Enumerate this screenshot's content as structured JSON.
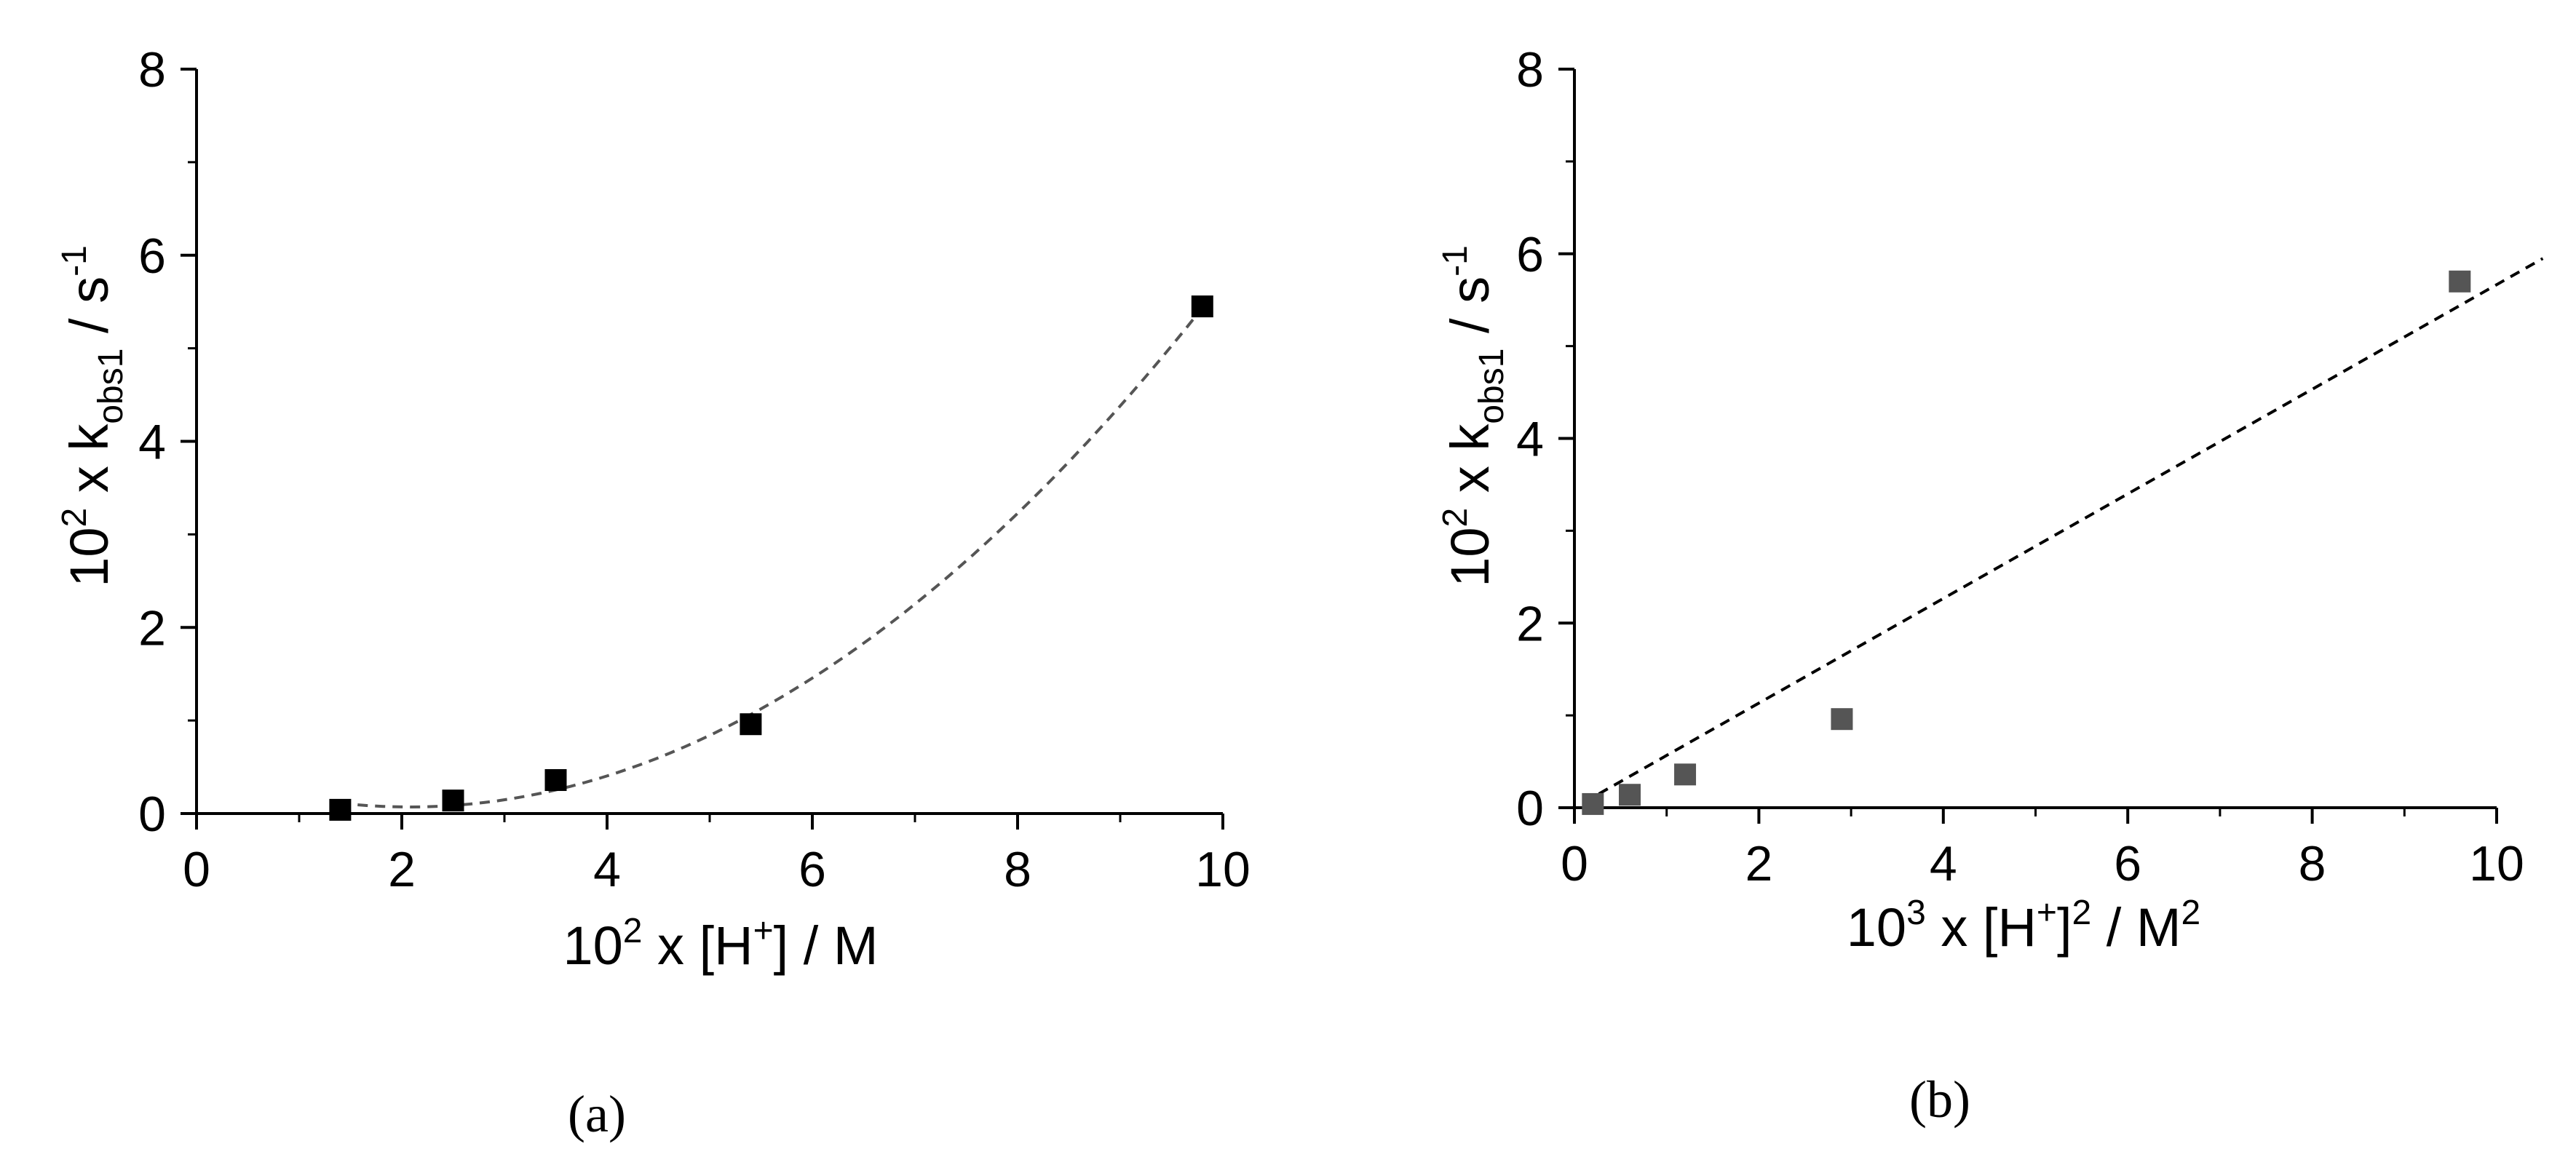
{
  "chart_data": [
    {
      "type": "scatter",
      "panel_label": "(a)",
      "xlabel": {
        "base": "10",
        "exp": "2",
        "mid": " x [H",
        "mid_sup": "+",
        "tail": "] / M"
      },
      "ylabel": {
        "base": "10",
        "exp": "2",
        "mid": " x k",
        "sub": "obs1",
        "tail": " / s",
        "tail_sup": "-1"
      },
      "xlim": [
        0,
        10
      ],
      "ylim": [
        0,
        8
      ],
      "xticks": [
        "0",
        "2",
        "4",
        "6",
        "8",
        "10"
      ],
      "yticks": [
        "0",
        "2",
        "4",
        "6",
        "8"
      ],
      "xtick_values": [
        0,
        2,
        4,
        6,
        8,
        10
      ],
      "ytick_values": [
        0,
        2,
        4,
        6,
        8
      ],
      "marker_color": "#000000",
      "fit_color": "#555555",
      "fit": "quadratic",
      "fit_range": [
        1.4,
        9.8
      ],
      "points": [
        {
          "x": 1.4,
          "y": 0.04
        },
        {
          "x": 2.5,
          "y": 0.14
        },
        {
          "x": 3.5,
          "y": 0.36
        },
        {
          "x": 5.4,
          "y": 0.96
        },
        {
          "x": 9.8,
          "y": 5.45
        }
      ]
    },
    {
      "type": "scatter",
      "panel_label": "(b)",
      "xlabel": {
        "base": "10",
        "exp": "3",
        "mid": " x [H",
        "mid_sup": "+",
        "tail": "]",
        "tail_sup": "2",
        "tail2": " / M",
        "tail2_sup": "2"
      },
      "ylabel": {
        "base": "10",
        "exp": "2",
        "mid": " x k",
        "sub": "obs1",
        "tail": " / s",
        "tail_sup": "-1"
      },
      "xlim": [
        0,
        10
      ],
      "ylim": [
        0,
        8
      ],
      "xticks": [
        "0",
        "2",
        "4",
        "6",
        "8",
        "10"
      ],
      "yticks": [
        "0",
        "2",
        "4",
        "6",
        "8"
      ],
      "xtick_values": [
        0,
        2,
        4,
        6,
        8,
        10
      ],
      "ytick_values": [
        0,
        2,
        4,
        6,
        8
      ],
      "marker_color": "#555555",
      "fit_color": "#000000",
      "fit": "linear",
      "fit_range": [
        0.1,
        10.5
      ],
      "points": [
        {
          "x": 0.2,
          "y": 0.04
        },
        {
          "x": 0.6,
          "y": 0.14
        },
        {
          "x": 1.2,
          "y": 0.36
        },
        {
          "x": 2.9,
          "y": 0.96
        },
        {
          "x": 9.6,
          "y": 5.7
        }
      ]
    }
  ]
}
